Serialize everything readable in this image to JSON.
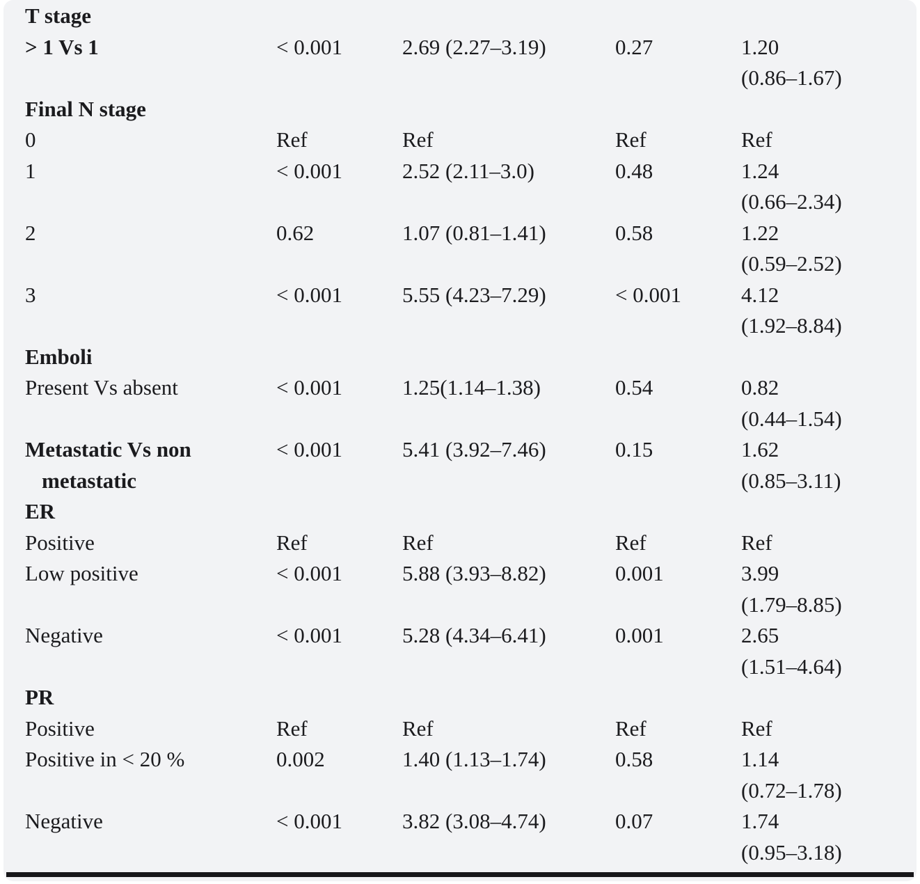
{
  "colors": {
    "page_background": "#f2f3f5",
    "text": "#1b1b1e",
    "rule": "#17171a"
  },
  "table": {
    "rows": [
      {
        "bold": true,
        "c1": "T stage"
      },
      {
        "bold": true,
        "c1": "> 1 Vs 1",
        "p1": "< 0.001",
        "hr1": "2.69 (2.27–3.19)",
        "p2": "0.27",
        "hr2": "1.20",
        "hr2b": "(0.86–1.67)"
      },
      {
        "bold": true,
        "c1": "Final N stage"
      },
      {
        "bold": false,
        "c1": "0",
        "p1": "Ref",
        "hr1": "Ref",
        "p2": "Ref",
        "hr2": "Ref"
      },
      {
        "bold": false,
        "c1": "1",
        "p1": "< 0.001",
        "hr1": "2.52 (2.11–3.0)",
        "p2": "0.48",
        "hr2": "1.24",
        "hr2b": "(0.66–2.34)"
      },
      {
        "bold": false,
        "c1": "2",
        "p1": "0.62",
        "hr1": "1.07 (0.81–1.41)",
        "p2": "0.58",
        "hr2": "1.22",
        "hr2b": "(0.59–2.52)"
      },
      {
        "bold": false,
        "c1": "3",
        "p1": "< 0.001",
        "hr1": "5.55 (4.23–7.29)",
        "p2": "< 0.001",
        "hr2": "4.12",
        "hr2b": "(1.92–8.84)"
      },
      {
        "bold": true,
        "c1": "Emboli"
      },
      {
        "bold": false,
        "c1": "Present Vs absent",
        "p1": "< 0.001",
        "hr1": "1.25(1.14–1.38)",
        "p2": "0.54",
        "hr2": "0.82",
        "hr2b": "(0.44–1.54)"
      },
      {
        "bold": true,
        "c1": "Metastatic Vs non",
        "c1b": "metastatic",
        "p1": "< 0.001",
        "hr1": "5.41 (3.92–7.46)",
        "p2": "0.15",
        "hr2": "1.62",
        "hr2b": "(0.85–3.11)"
      },
      {
        "bold": true,
        "c1": "ER"
      },
      {
        "bold": false,
        "c1": "Positive",
        "p1": "Ref",
        "hr1": "Ref",
        "p2": "Ref",
        "hr2": "Ref"
      },
      {
        "bold": false,
        "c1": "Low positive",
        "p1": "< 0.001",
        "hr1": "5.88 (3.93–8.82)",
        "p2": "0.001",
        "hr2": "3.99",
        "hr2b": "(1.79–8.85)"
      },
      {
        "bold": false,
        "c1": "Negative",
        "p1": "< 0.001",
        "hr1": "5.28 (4.34–6.41)",
        "p2": "0.001",
        "hr2": "2.65",
        "hr2b": "(1.51–4.64)"
      },
      {
        "bold": true,
        "c1": "PR"
      },
      {
        "bold": false,
        "c1": "Positive",
        "p1": "Ref",
        "hr1": "Ref",
        "p2": "Ref",
        "hr2": "Ref"
      },
      {
        "bold": false,
        "c1": "Positive in < 20 %",
        "p1": "0.002",
        "hr1": "1.40 (1.13–1.74)",
        "p2": "0.58",
        "hr2": "1.14",
        "hr2b": "(0.72–1.78)"
      },
      {
        "bold": false,
        "c1": "Negative",
        "p1": "< 0.001",
        "hr1": "3.82 (3.08–4.74)",
        "p2": "0.07",
        "hr2": "1.74",
        "hr2b": "(0.95–3.18)"
      }
    ]
  }
}
